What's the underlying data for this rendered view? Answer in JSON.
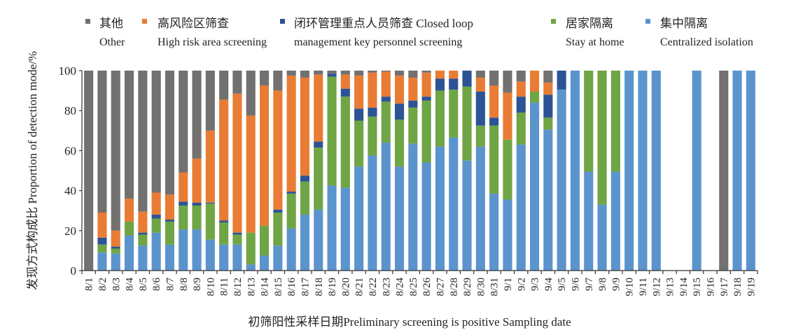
{
  "chart_data": {
    "type": "bar",
    "stacked": true,
    "percent": true,
    "title": "",
    "xlabel": "初筛阳性采样日期Preliminary screening is positive Sampling date",
    "ylabel": "发现方式构成比 Proportion of detection mode/%",
    "ylim": [
      0,
      100
    ],
    "yticks": [
      0,
      20,
      40,
      60,
      80,
      100
    ],
    "grid": false,
    "legend_position": "top",
    "categories": [
      "8/1",
      "8/2",
      "8/3",
      "8/4",
      "8/5",
      "8/6",
      "8/7",
      "8/8",
      "8/9",
      "8/10",
      "8/11",
      "8/12",
      "8/13",
      "8/14",
      "8/15",
      "8/16",
      "8/17",
      "8/18",
      "8/19",
      "8/20",
      "8/21",
      "8/22",
      "8/23",
      "8/24",
      "8/25",
      "8/26",
      "8/27",
      "8/28",
      "8/29",
      "8/30",
      "8/31",
      "9/1",
      "9/2",
      "9/3",
      "9/4",
      "9/5",
      "9/6",
      "9/7",
      "9/8",
      "9/9",
      "9/10",
      "9/11",
      "9/12",
      "9/13",
      "9/14",
      "9/15",
      "9/16",
      "9/17",
      "9/18",
      "9/19"
    ],
    "series": [
      {
        "key": "centralized",
        "name_zh": "集中隔离",
        "name_en": "Centralized isolation",
        "color": "#5b94cd",
        "values": [
          0,
          9,
          8.5,
          17.5,
          12.5,
          19,
          13,
          20.5,
          20.5,
          15.5,
          13,
          13,
          3,
          7.5,
          12.5,
          21,
          28,
          30.5,
          42.5,
          41.5,
          52,
          57.5,
          64,
          52,
          63.5,
          54,
          62,
          66.5,
          55,
          62,
          38.5,
          35.5,
          63,
          84,
          70.5,
          90.5,
          100,
          49.5,
          33,
          49.5,
          100,
          100,
          100,
          0,
          0,
          100,
          0,
          0,
          100,
          100
        ]
      },
      {
        "key": "home",
        "name_zh": "居家隔离",
        "name_en": "Stay at home",
        "color": "#6fa545",
        "values": [
          0,
          4,
          2.5,
          7,
          5.5,
          7,
          11.5,
          12,
          12,
          18,
          11,
          5,
          16,
          15,
          16.5,
          17.5,
          16.5,
          31,
          54.5,
          45.5,
          23,
          19.5,
          20.5,
          23.5,
          18,
          31,
          28,
          24,
          37,
          10.5,
          34,
          30,
          16,
          5.5,
          6,
          0,
          0,
          50.5,
          67,
          50.5,
          0,
          0,
          0,
          0,
          0,
          0,
          0,
          0,
          0,
          0
        ]
      },
      {
        "key": "closed_loop",
        "name_zh": "闭环管理重点人员筛查",
        "name_en": "Closed loop management key personnel screening",
        "color": "#2c5495",
        "values": [
          0,
          3.5,
          1,
          0,
          1,
          2,
          1,
          2,
          1.5,
          0.5,
          1,
          1,
          0,
          0,
          1.5,
          1,
          3,
          3,
          1.5,
          4,
          6,
          4.5,
          2.5,
          8,
          3.5,
          2,
          6,
          5.5,
          8,
          17,
          4,
          0,
          8,
          0,
          11.5,
          9.5,
          0,
          0,
          0,
          0,
          0,
          0,
          0,
          0,
          0,
          0,
          0,
          0,
          0,
          0
        ]
      },
      {
        "key": "high_risk",
        "name_zh": "高风险区筛查",
        "name_en": "High risk area screening",
        "color": "#e97c34",
        "values": [
          0,
          12.5,
          8,
          11.5,
          10.5,
          11,
          12.5,
          14.5,
          22,
          36,
          60.5,
          69.5,
          58.5,
          70,
          59.5,
          58,
          49,
          33.5,
          0,
          7,
          16.5,
          17.5,
          12.5,
          14,
          11.5,
          12,
          4,
          4,
          0,
          7,
          16,
          23.5,
          7.5,
          10.5,
          6,
          0,
          0,
          0,
          0,
          0,
          0,
          0,
          0,
          0,
          0,
          0,
          0,
          0,
          0,
          0
        ]
      },
      {
        "key": "other",
        "name_zh": "其他",
        "name_en": "Other",
        "color": "#737070",
        "values": [
          100,
          71,
          80,
          64,
          70.5,
          61,
          62,
          51,
          44,
          30,
          14.5,
          11.5,
          22.5,
          7.5,
          10,
          2.5,
          3.5,
          2,
          1.5,
          2,
          2.5,
          1,
          0.5,
          2.5,
          3.5,
          1,
          0,
          0,
          0,
          3.5,
          7.5,
          11,
          5.5,
          0,
          6,
          0,
          0,
          0,
          0,
          0,
          0,
          0,
          0,
          0,
          0,
          0,
          0,
          100,
          0,
          0
        ]
      }
    ],
    "legend_order": [
      "other",
      "high_risk",
      "closed_loop",
      "home",
      "centralized"
    ]
  },
  "legend": {
    "items": [
      {
        "zh": "其他",
        "en": "Other",
        "color": "#737070"
      },
      {
        "zh": "高风险区筛查",
        "en": "High risk area screening",
        "color": "#e97c34"
      },
      {
        "zh": "闭环管理重点人员筛查 Closed loop",
        "en": "management key personnel screening",
        "color": "#2c5495"
      },
      {
        "zh": "居家隔离",
        "en": "Stay at home",
        "color": "#6fa545"
      },
      {
        "zh": "集中隔离",
        "en": "Centralized isolation",
        "color": "#5b94cd"
      }
    ]
  }
}
